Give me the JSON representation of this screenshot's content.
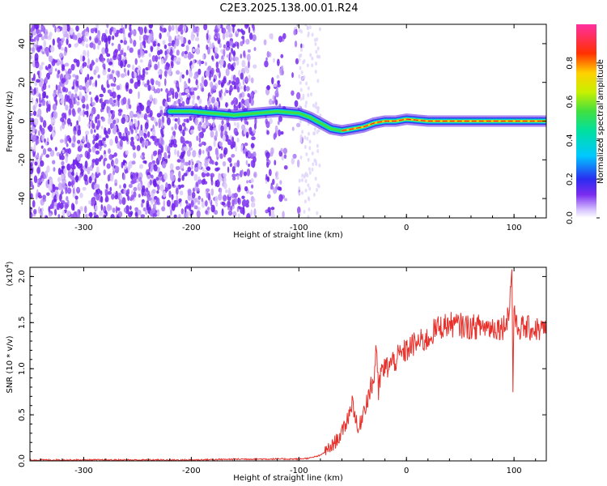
{
  "title": "C2E3.2025.138.00.01.R24",
  "chart_data": [
    {
      "type": "heatmap",
      "xlabel": "Height of straight line (km)",
      "ylabel": "Frequency (Hz)",
      "xlim": [
        -350,
        130
      ],
      "ylim": [
        -50,
        50
      ],
      "x_ticks": [
        "-300",
        "-200",
        "-100",
        "0",
        "100"
      ],
      "y_ticks": [
        "-40",
        "-20",
        "0",
        "20",
        "40"
      ],
      "colorbar": {
        "label": "Normalized spectral amplitude",
        "range": [
          0,
          1
        ],
        "ticks": [
          "0.0",
          "0.2",
          "0.4",
          "0.6",
          "0.8"
        ]
      },
      "ridge": {
        "x": [
          -220,
          -200,
          -180,
          -160,
          -140,
          -120,
          -100,
          -90,
          -80,
          -70,
          -60,
          -50,
          -40,
          -30,
          -20,
          -10,
          0,
          20,
          40,
          60,
          80,
          100,
          130
        ],
        "y": [
          5,
          5,
          4,
          3,
          4,
          5,
          4,
          2,
          -1,
          -4,
          -5,
          -4,
          -3,
          -1,
          0,
          0,
          1,
          0,
          0,
          0,
          0,
          0,
          0
        ]
      }
    },
    {
      "type": "line",
      "xlabel": "Height of straight line (km)",
      "ylabel": "SNR (10 * v/v)",
      "y_multiplier": "(x10",
      "y_multiplier_exp": "4",
      "y_multiplier_close": ")",
      "xlim": [
        -350,
        130
      ],
      "ylim": [
        0,
        2.1
      ],
      "x_ticks": [
        "-300",
        "-200",
        "-100",
        "0",
        "100"
      ],
      "y_ticks": [
        "0.0",
        "0.5",
        "1.0",
        "1.5",
        "2.0"
      ],
      "series": [
        {
          "color": "#e8302a",
          "x": [
            -350,
            -300,
            -250,
            -200,
            -150,
            -120,
            -100,
            -90,
            -80,
            -70,
            -60,
            -55,
            -50,
            -45,
            -40,
            -35,
            -30,
            -28,
            -26,
            -24,
            -20,
            -15,
            -10,
            -5,
            0,
            5,
            10,
            15,
            20,
            25,
            30,
            40,
            50,
            60,
            70,
            80,
            90,
            95,
            97,
            98,
            99,
            100,
            102,
            110,
            120,
            130
          ],
          "y": [
            0.01,
            0.01,
            0.01,
            0.01,
            0.02,
            0.02,
            0.02,
            0.03,
            0.06,
            0.15,
            0.3,
            0.45,
            0.65,
            0.3,
            0.55,
            0.72,
            0.9,
            1.3,
            0.7,
            0.95,
            1.0,
            1.05,
            1.1,
            1.15,
            1.2,
            1.25,
            1.28,
            1.3,
            1.32,
            1.4,
            1.45,
            1.48,
            1.47,
            1.45,
            1.46,
            1.45,
            1.45,
            1.6,
            1.9,
            2.1,
            0.8,
            1.7,
            1.45,
            1.44,
            1.43,
            1.42
          ]
        }
      ]
    }
  ]
}
